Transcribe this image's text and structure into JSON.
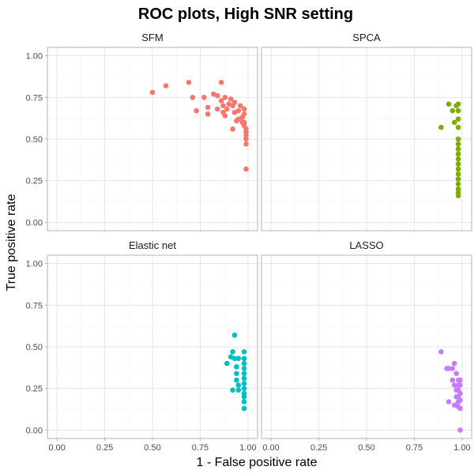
{
  "chart_data": {
    "type": "scatter",
    "title": "ROC plots, High SNR setting",
    "xlabel": "1 - False positive rate",
    "ylabel": "True positive rate",
    "xlim": [
      0,
      1
    ],
    "ylim": [
      0,
      1
    ],
    "x_ticks": [
      "0.00",
      "0.25",
      "0.50",
      "0.75",
      "1.00"
    ],
    "y_ticks": [
      "0.00",
      "0.25",
      "0.50",
      "0.75",
      "1.00"
    ],
    "grid": true,
    "panels": [
      {
        "name": "SFM",
        "color": "#F8766D",
        "points": [
          [
            0.5,
            0.78
          ],
          [
            0.57,
            0.82
          ],
          [
            0.69,
            0.84
          ],
          [
            0.71,
            0.75
          ],
          [
            0.73,
            0.67
          ],
          [
            0.77,
            0.75
          ],
          [
            0.79,
            0.69
          ],
          [
            0.79,
            0.65
          ],
          [
            0.82,
            0.77
          ],
          [
            0.84,
            0.76
          ],
          [
            0.84,
            0.68
          ],
          [
            0.86,
            0.84
          ],
          [
            0.86,
            0.73
          ],
          [
            0.87,
            0.7
          ],
          [
            0.87,
            0.66
          ],
          [
            0.88,
            0.64
          ],
          [
            0.88,
            0.75
          ],
          [
            0.89,
            0.68
          ],
          [
            0.9,
            0.71
          ],
          [
            0.91,
            0.74
          ],
          [
            0.92,
            0.7
          ],
          [
            0.92,
            0.56
          ],
          [
            0.93,
            0.66
          ],
          [
            0.93,
            0.72
          ],
          [
            0.94,
            0.61
          ],
          [
            0.95,
            0.67
          ],
          [
            0.95,
            0.62
          ],
          [
            0.96,
            0.7
          ],
          [
            0.97,
            0.63
          ],
          [
            0.97,
            0.6
          ],
          [
            0.98,
            0.68
          ],
          [
            0.98,
            0.65
          ],
          [
            0.98,
            0.58
          ],
          [
            0.99,
            0.56
          ],
          [
            0.99,
            0.54
          ],
          [
            0.99,
            0.52
          ],
          [
            0.99,
            0.5
          ],
          [
            0.99,
            0.47
          ],
          [
            0.98,
            0.6
          ],
          [
            0.99,
            0.32
          ]
        ]
      },
      {
        "name": "SPCA",
        "color": "#7CAE00",
        "points": [
          [
            0.89,
            0.57
          ],
          [
            0.93,
            0.71
          ],
          [
            0.95,
            0.67
          ],
          [
            0.97,
            0.7
          ],
          [
            0.96,
            0.6
          ],
          [
            0.98,
            0.71
          ],
          [
            0.98,
            0.67
          ],
          [
            0.98,
            0.62
          ],
          [
            0.98,
            0.57
          ],
          [
            0.98,
            0.5
          ],
          [
            0.98,
            0.47
          ],
          [
            0.98,
            0.44
          ],
          [
            0.98,
            0.41
          ],
          [
            0.98,
            0.38
          ],
          [
            0.98,
            0.35
          ],
          [
            0.98,
            0.32
          ],
          [
            0.98,
            0.29
          ],
          [
            0.98,
            0.26
          ],
          [
            0.98,
            0.23
          ],
          [
            0.98,
            0.2
          ],
          [
            0.98,
            0.18
          ],
          [
            0.98,
            0.16
          ]
        ]
      },
      {
        "name": "Elastic net",
        "color": "#00BFC4",
        "points": [
          [
            0.93,
            0.57
          ],
          [
            0.89,
            0.4
          ],
          [
            0.91,
            0.44
          ],
          [
            0.92,
            0.47
          ],
          [
            0.93,
            0.43
          ],
          [
            0.95,
            0.43
          ],
          [
            0.92,
            0.24
          ],
          [
            0.94,
            0.38
          ],
          [
            0.94,
            0.34
          ],
          [
            0.94,
            0.3
          ],
          [
            0.95,
            0.27
          ],
          [
            0.95,
            0.24
          ],
          [
            0.98,
            0.47
          ],
          [
            0.98,
            0.43
          ],
          [
            0.98,
            0.4
          ],
          [
            0.98,
            0.37
          ],
          [
            0.98,
            0.34
          ],
          [
            0.98,
            0.31
          ],
          [
            0.98,
            0.28
          ],
          [
            0.98,
            0.25
          ],
          [
            0.98,
            0.22
          ],
          [
            0.98,
            0.2
          ],
          [
            0.98,
            0.17
          ],
          [
            0.98,
            0.13
          ]
        ]
      },
      {
        "name": "LASSO",
        "color": "#C77CFF",
        "points": [
          [
            0.89,
            0.47
          ],
          [
            0.92,
            0.37
          ],
          [
            0.93,
            0.37
          ],
          [
            0.95,
            0.37
          ],
          [
            0.96,
            0.4
          ],
          [
            0.97,
            0.34
          ],
          [
            0.93,
            0.17
          ],
          [
            0.95,
            0.3
          ],
          [
            0.96,
            0.27
          ],
          [
            0.97,
            0.24
          ],
          [
            0.97,
            0.2
          ],
          [
            0.96,
            0.15
          ],
          [
            0.98,
            0.3
          ],
          [
            0.98,
            0.27
          ],
          [
            0.98,
            0.24
          ],
          [
            0.98,
            0.2
          ],
          [
            0.98,
            0.17
          ],
          [
            0.98,
            0.14
          ],
          [
            0.99,
            0.3
          ],
          [
            0.99,
            0.27
          ],
          [
            0.99,
            0.22
          ],
          [
            0.99,
            0.18
          ],
          [
            0.99,
            0.13
          ],
          [
            0.99,
            0.0
          ]
        ]
      }
    ]
  }
}
